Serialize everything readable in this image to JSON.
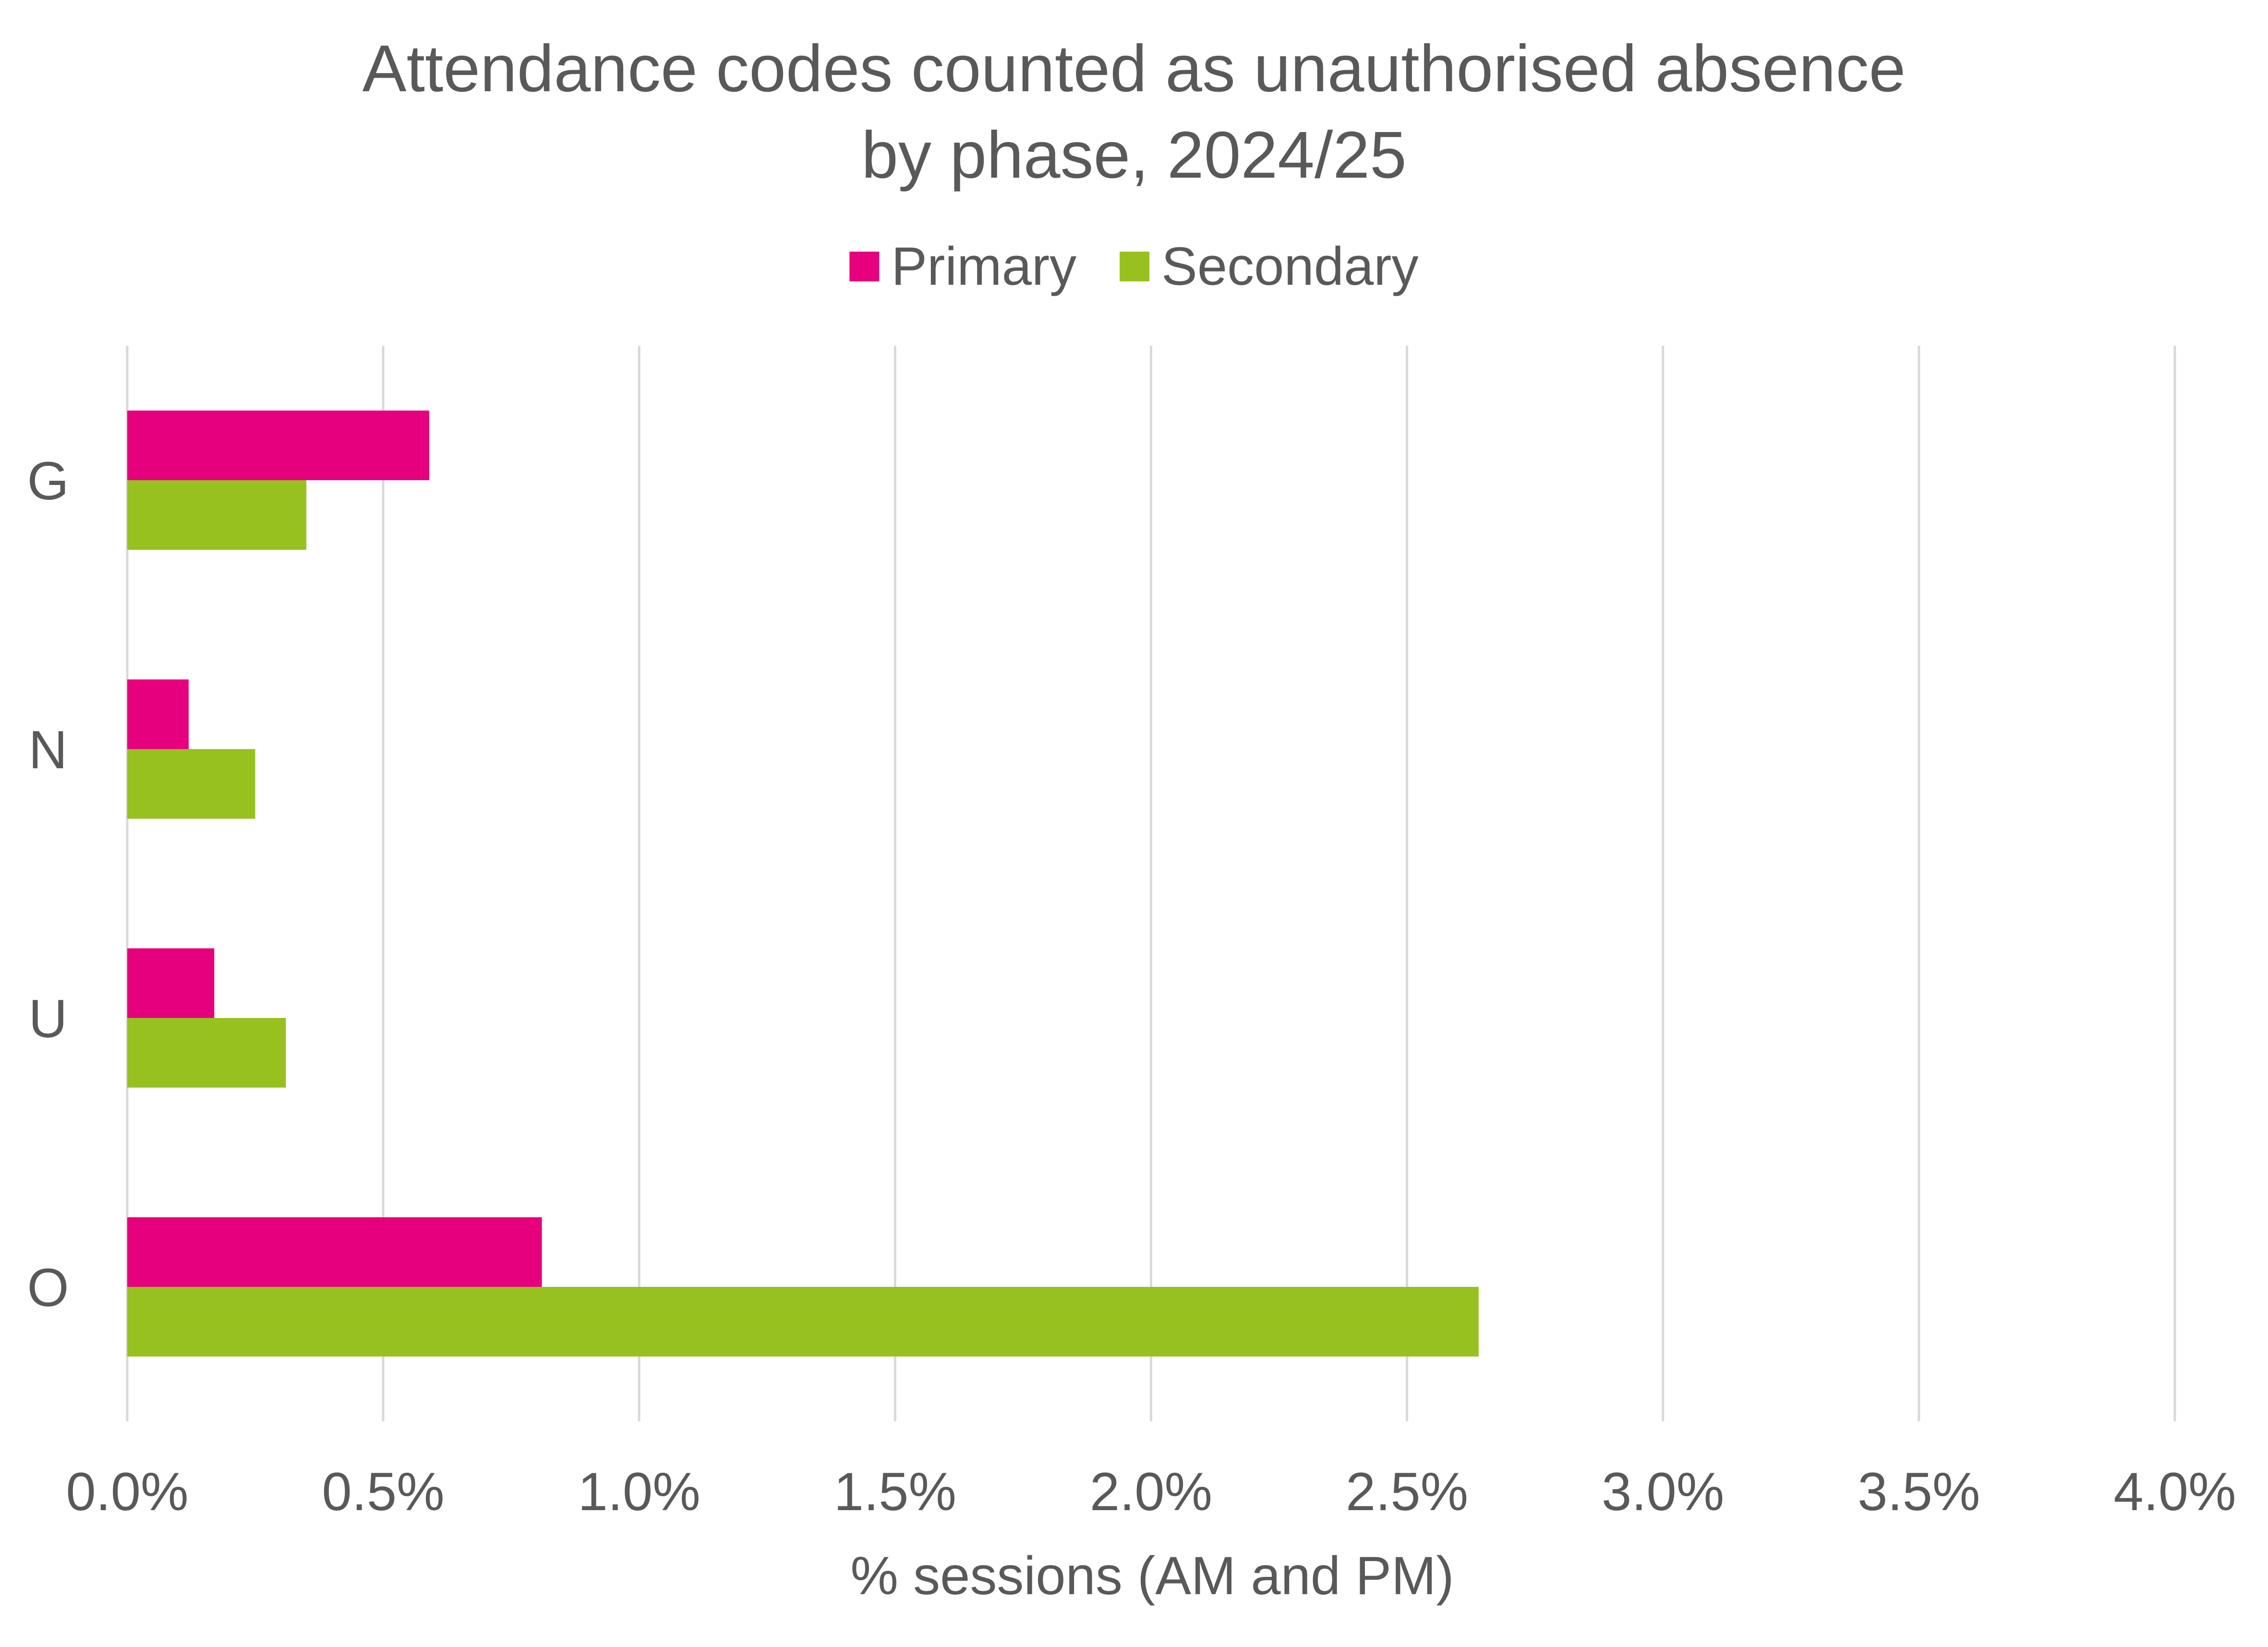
{
  "chart_data": {
    "type": "bar",
    "orientation": "horizontal",
    "title_lines": [
      "Attendance codes counted as unauthorised absence",
      "by phase, 2024/25"
    ],
    "categories": [
      "G",
      "N",
      "U",
      "O"
    ],
    "series": [
      {
        "name": "Primary",
        "color": "#e6007e",
        "values": [
          0.59,
          0.12,
          0.17,
          0.81
        ]
      },
      {
        "name": "Secondary",
        "color": "#97c11f",
        "values": [
          0.35,
          0.25,
          0.31,
          2.64
        ]
      }
    ],
    "xlabel": "% sessions (AM and PM)",
    "ylabel": "",
    "xlim": [
      0,
      4
    ],
    "x_ticks": [
      0,
      0.5,
      1,
      1.5,
      2,
      2.5,
      3,
      3.5,
      4
    ],
    "x_tick_labels": [
      "0.0%",
      "0.5%",
      "1.0%",
      "1.5%",
      "2.0%",
      "2.5%",
      "3.0%",
      "3.5%",
      "4.0%"
    ],
    "grid": "vertical",
    "legend_position": "top"
  }
}
